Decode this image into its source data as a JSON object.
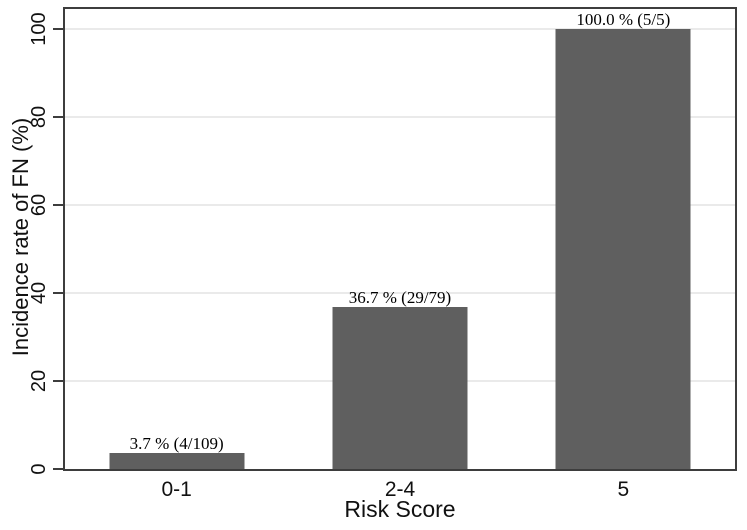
{
  "chart_data": {
    "type": "bar",
    "title": "",
    "xlabel": "Risk Score",
    "ylabel": "Incidence rate of FN (%)",
    "categories": [
      "0-1",
      "2-4",
      "5"
    ],
    "values": [
      3.7,
      36.7,
      100.0
    ],
    "bar_labels": [
      "3.7 % (4/109)",
      "36.7 % (29/79)",
      "100.0 % (5/5)"
    ],
    "fractions": [
      "4/109",
      "29/79",
      "5/5"
    ],
    "yticks": [
      0,
      20,
      40,
      60,
      80,
      100
    ],
    "ylim": [
      0,
      104.5
    ],
    "grid": true,
    "legend": "none",
    "colors": {
      "bar": "#5f5f5f",
      "axis_frame": "#3d3d3d",
      "gridline": "#eaeaea",
      "text": "#000000"
    }
  }
}
